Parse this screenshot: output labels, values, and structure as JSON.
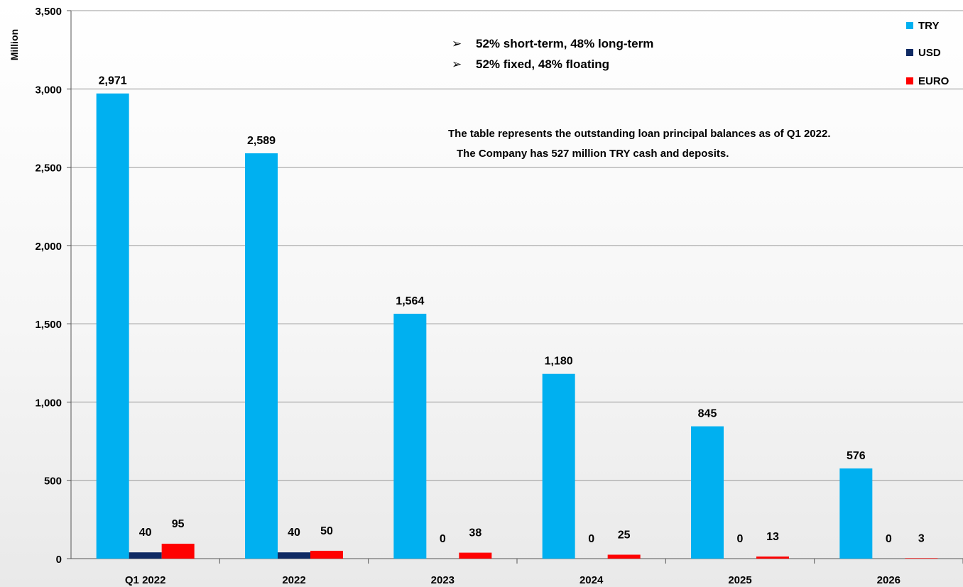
{
  "chart_data": {
    "type": "bar",
    "ylabel": "Million",
    "ylim": [
      0,
      3500
    ],
    "yticks": [
      0,
      500,
      1000,
      1500,
      2000,
      2500,
      3000,
      3500
    ],
    "ytick_labels": [
      "0",
      "500",
      "1,000",
      "1,500",
      "2,000",
      "2,500",
      "3,000",
      "3,500"
    ],
    "grid": true,
    "legend_position": "top-right",
    "categories": [
      "Q1 2022",
      "2022",
      "2023",
      "2024",
      "2025",
      "2026"
    ],
    "series": [
      {
        "name": "TRY",
        "color": "#00b0f0",
        "values": [
          2971,
          2589,
          1564,
          1180,
          845,
          576
        ],
        "labels": [
          "2,971",
          "2,589",
          "1,564",
          "1,180",
          "845",
          "576"
        ]
      },
      {
        "name": "USD",
        "color": "#0f2a63",
        "values": [
          40,
          40,
          0,
          0,
          0,
          0
        ],
        "labels": [
          "40",
          "40",
          "0",
          "0",
          "0",
          "0"
        ]
      },
      {
        "name": "EURO",
        "color": "#ff0000",
        "values": [
          95,
          50,
          38,
          25,
          13,
          3
        ],
        "labels": [
          "95",
          "50",
          "38",
          "25",
          "13",
          "3"
        ]
      }
    ],
    "annotations": {
      "bullets": [
        "52% short-term, 48% long-term",
        "52% fixed, 48% floating"
      ],
      "note_lines": [
        "The table represents the outstanding loan principal balances as of Q1 2022.",
        "The Company has 527 million TRY cash and deposits."
      ]
    }
  }
}
